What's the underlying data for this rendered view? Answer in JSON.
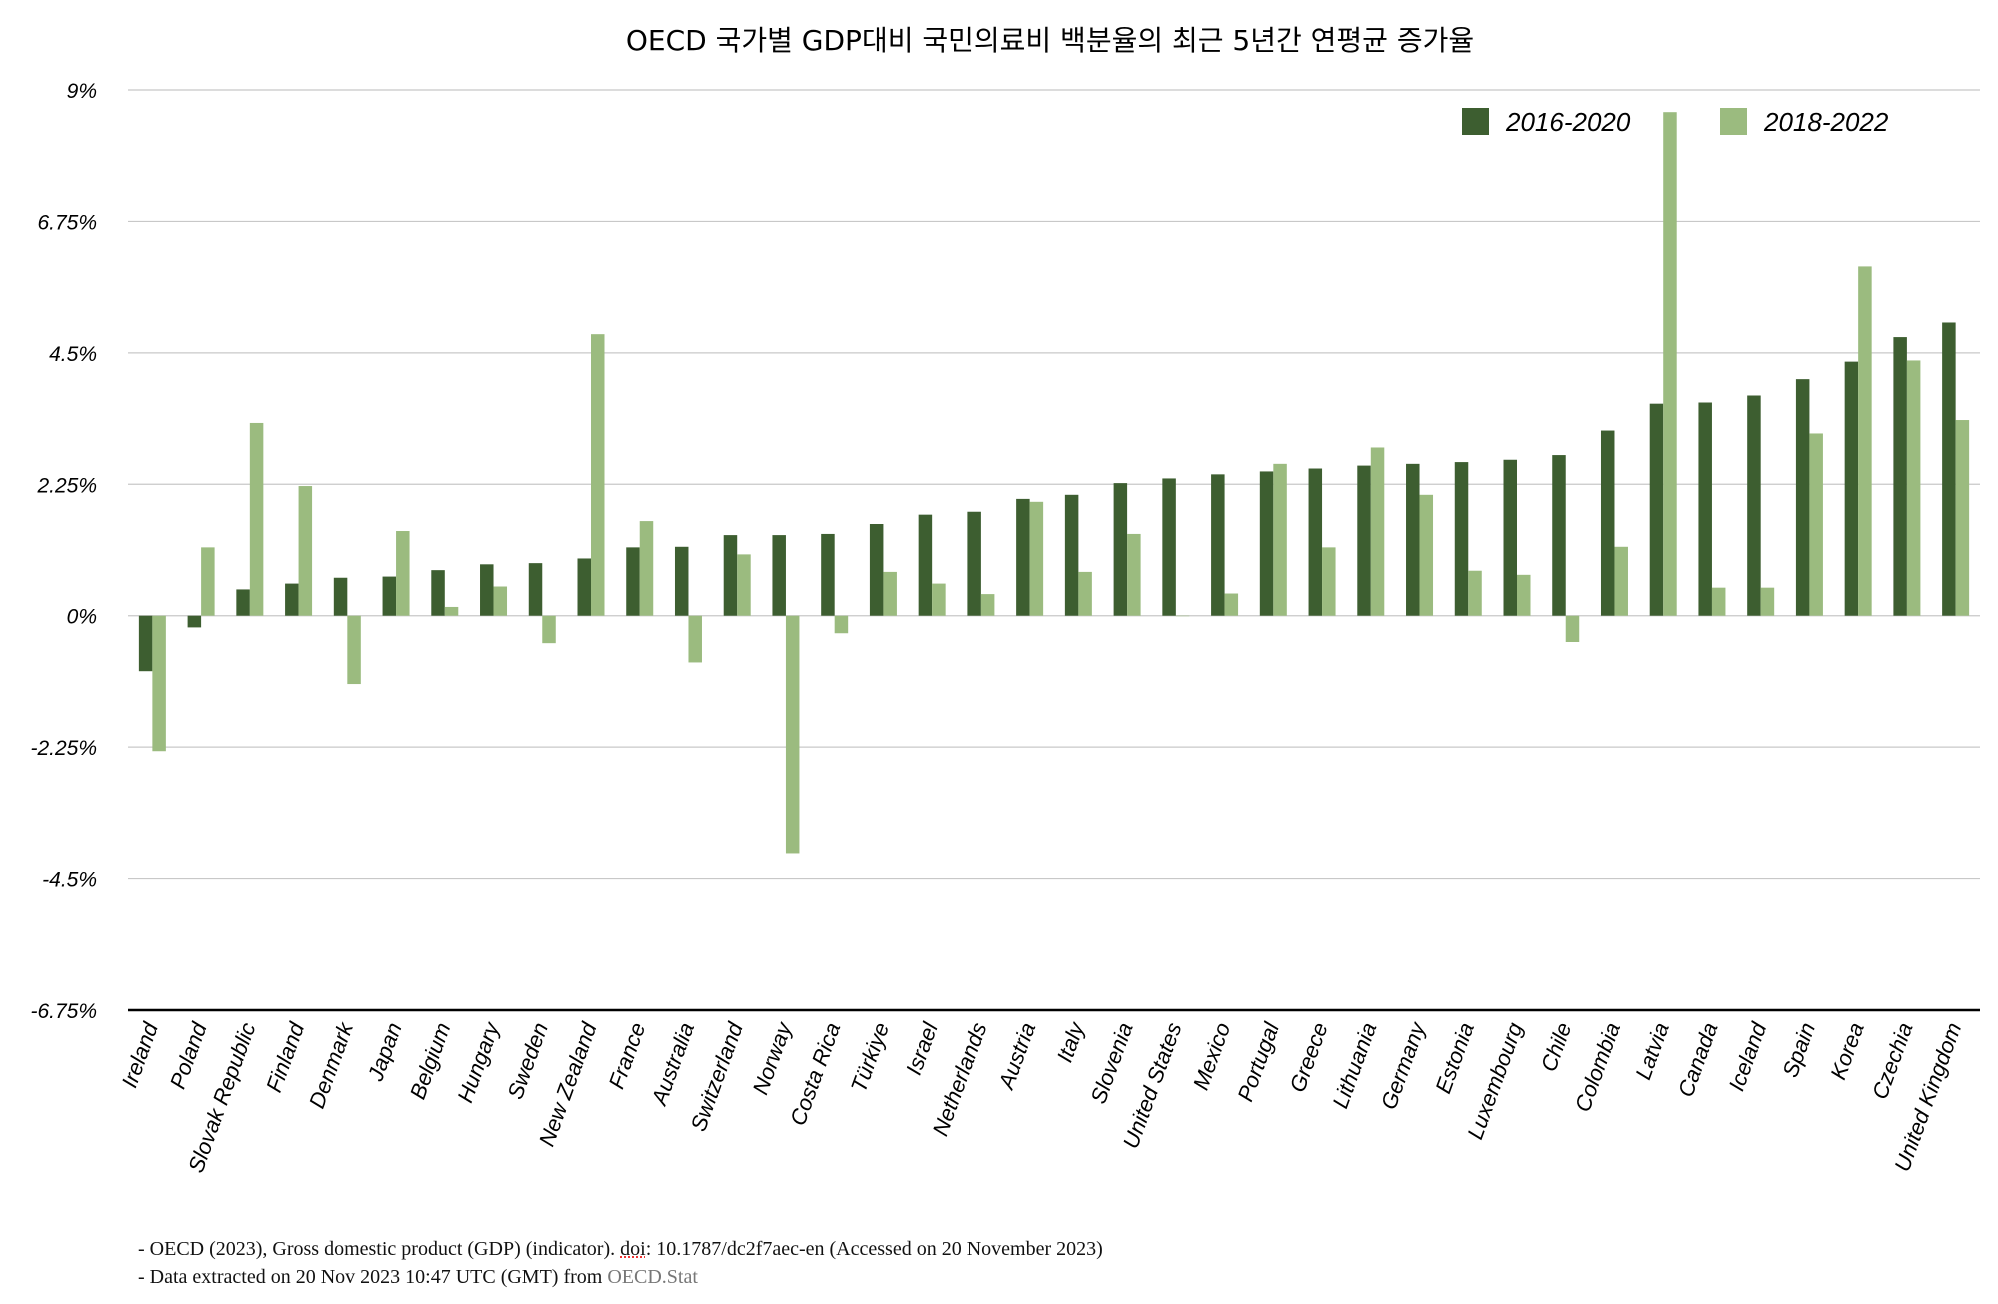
{
  "chart_data": {
    "type": "bar",
    "title": "OECD 국가별 GDP대비 국민의료비 백분율의 최근 5년간 연평균 증가율",
    "ylim": [
      -6.75,
      9
    ],
    "yticks": [
      "9%",
      "6.75%",
      "4.5%",
      "2.25%",
      "0%",
      "-2.25%",
      "-4.5%",
      "-6.75%"
    ],
    "ytick_values": [
      9,
      6.75,
      4.5,
      2.25,
      0,
      -2.25,
      -4.5,
      -6.75
    ],
    "grid": true,
    "legend_position": "top-right",
    "categories": [
      "Ireland",
      "Poland",
      "Slovak Republic",
      "Finland",
      "Denmark",
      "Japan",
      "Belgium",
      "Hungary",
      "Sweden",
      "New Zealand",
      "France",
      "Australia",
      "Switzerland",
      "Norway",
      "Costa Rica",
      "Türkiye",
      "Israel",
      "Netherlands",
      "Austria",
      "Italy",
      "Slovenia",
      "United States",
      "Mexico",
      "Portugal",
      "Greece",
      "Lithuania",
      "Germany",
      "Estonia",
      "Luxembourg",
      "Chile",
      "Colombia",
      "Latvia",
      "Canada",
      "Iceland",
      "Spain",
      "Korea",
      "Czechia",
      "United Kingdom"
    ],
    "series": [
      {
        "name": "2016-2020",
        "color": "#3d5e30",
        "values": [
          -0.95,
          -0.2,
          0.45,
          0.55,
          0.65,
          0.67,
          0.78,
          0.88,
          0.9,
          0.98,
          1.17,
          1.18,
          1.38,
          1.38,
          1.4,
          1.57,
          1.73,
          1.78,
          2.0,
          2.07,
          2.27,
          2.35,
          2.42,
          2.47,
          2.52,
          2.57,
          2.6,
          2.63,
          2.67,
          2.75,
          3.17,
          3.63,
          3.65,
          3.77,
          4.05,
          4.35,
          4.77,
          5.02
        ]
      },
      {
        "name": "2018-2022",
        "color": "#9bbb7f",
        "values": [
          -2.32,
          1.17,
          3.3,
          2.22,
          -1.17,
          1.45,
          0.15,
          0.5,
          -0.47,
          4.82,
          1.62,
          -0.8,
          1.05,
          -4.07,
          -0.3,
          0.75,
          0.55,
          0.37,
          1.95,
          0.75,
          1.4,
          0.0,
          0.38,
          2.6,
          1.17,
          2.88,
          2.07,
          0.77,
          0.7,
          -0.45,
          1.18,
          8.62,
          0.48,
          0.48,
          3.12,
          5.98,
          4.37,
          3.35
        ]
      }
    ]
  },
  "footer": {
    "line1_a": "- OECD (2023), Gross domestic product (GDP) (indicator). ",
    "line1_doi": "doi",
    "line1_b": ": 10.1787/dc2f7aec-en (Accessed on 20 November 2023)",
    "line2_a": "- Data extracted on 20 Nov 2023 10:47 UTC (GMT) from ",
    "line2_link": "OECD.Stat"
  }
}
